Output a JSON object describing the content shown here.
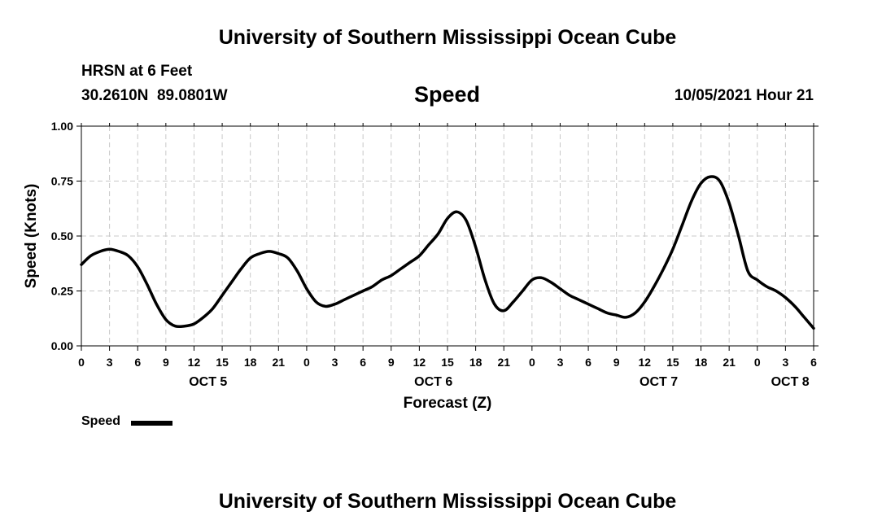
{
  "header": {
    "title_top": "University of Southern Mississippi Ocean Cube",
    "station": "HRSN at 6 Feet",
    "coords": "30.2610N  89.0801W",
    "chart_title": "Speed",
    "datetime": "10/05/2021 Hour 21",
    "title_bottom": "University of Southern Mississippi Ocean Cube"
  },
  "legend": {
    "label": "Speed",
    "color": "#000000"
  },
  "chart_data": {
    "type": "line",
    "title": "Speed",
    "xlabel": "Forecast (Z)",
    "ylabel": "Speed (Knots)",
    "ylim": [
      0,
      1
    ],
    "xlim_hours": [
      0,
      78
    ],
    "grid": true,
    "yticks": [
      {
        "value": 0,
        "label": "0.00"
      },
      {
        "value": 0.25,
        "label": "0.25"
      },
      {
        "value": 0.5,
        "label": "0.50"
      },
      {
        "value": 0.75,
        "label": "0.75"
      },
      {
        "value": 1,
        "label": "1.00"
      }
    ],
    "xticks": [
      {
        "hour": 0,
        "label": "0"
      },
      {
        "hour": 3,
        "label": "3"
      },
      {
        "hour": 6,
        "label": "6"
      },
      {
        "hour": 9,
        "label": "9"
      },
      {
        "hour": 12,
        "label": "12"
      },
      {
        "hour": 15,
        "label": "15"
      },
      {
        "hour": 18,
        "label": "18"
      },
      {
        "hour": 21,
        "label": "21"
      },
      {
        "hour": 24,
        "label": "0"
      },
      {
        "hour": 27,
        "label": "3"
      },
      {
        "hour": 30,
        "label": "6"
      },
      {
        "hour": 33,
        "label": "9"
      },
      {
        "hour": 36,
        "label": "12"
      },
      {
        "hour": 39,
        "label": "15"
      },
      {
        "hour": 42,
        "label": "18"
      },
      {
        "hour": 45,
        "label": "21"
      },
      {
        "hour": 48,
        "label": "0"
      },
      {
        "hour": 51,
        "label": "3"
      },
      {
        "hour": 54,
        "label": "6"
      },
      {
        "hour": 57,
        "label": "9"
      },
      {
        "hour": 60,
        "label": "12"
      },
      {
        "hour": 63,
        "label": "15"
      },
      {
        "hour": 66,
        "label": "18"
      },
      {
        "hour": 69,
        "label": "21"
      },
      {
        "hour": 72,
        "label": "0"
      },
      {
        "hour": 75,
        "label": "3"
      },
      {
        "hour": 78,
        "label": "6"
      }
    ],
    "day_labels": [
      {
        "hour": 13.5,
        "label": "OCT 5"
      },
      {
        "hour": 37.5,
        "label": "OCT 6"
      },
      {
        "hour": 61.5,
        "label": "OCT 7"
      },
      {
        "hour": 75.5,
        "label": "OCT 8"
      }
    ],
    "series": [
      {
        "name": "Speed",
        "x": [
          0,
          1,
          2,
          3,
          4,
          5,
          6,
          7,
          8,
          9,
          10,
          11,
          12,
          13,
          14,
          15,
          16,
          17,
          18,
          19,
          20,
          21,
          22,
          23,
          24,
          25,
          26,
          27,
          28,
          29,
          30,
          31,
          32,
          33,
          34,
          35,
          36,
          37,
          38,
          39,
          40,
          41,
          42,
          43,
          44,
          45,
          46,
          47,
          48,
          49,
          50,
          51,
          52,
          53,
          54,
          55,
          56,
          57,
          58,
          59,
          60,
          61,
          62,
          63,
          64,
          65,
          66,
          67,
          68,
          69,
          70,
          71,
          72,
          73,
          74,
          75,
          76,
          77,
          78
        ],
        "values": [
          0.37,
          0.41,
          0.43,
          0.44,
          0.43,
          0.41,
          0.36,
          0.28,
          0.19,
          0.12,
          0.09,
          0.09,
          0.1,
          0.13,
          0.17,
          0.23,
          0.29,
          0.35,
          0.4,
          0.42,
          0.43,
          0.42,
          0.4,
          0.34,
          0.26,
          0.2,
          0.18,
          0.19,
          0.21,
          0.23,
          0.25,
          0.27,
          0.3,
          0.32,
          0.35,
          0.38,
          0.41,
          0.46,
          0.51,
          0.58,
          0.61,
          0.57,
          0.45,
          0.3,
          0.19,
          0.16,
          0.2,
          0.25,
          0.3,
          0.31,
          0.29,
          0.26,
          0.23,
          0.21,
          0.19,
          0.17,
          0.15,
          0.14,
          0.13,
          0.15,
          0.2,
          0.27,
          0.35,
          0.44,
          0.55,
          0.66,
          0.74,
          0.77,
          0.75,
          0.65,
          0.5,
          0.34,
          0.3,
          0.27,
          0.25,
          0.22,
          0.18,
          0.13,
          0.08
        ]
      }
    ]
  }
}
